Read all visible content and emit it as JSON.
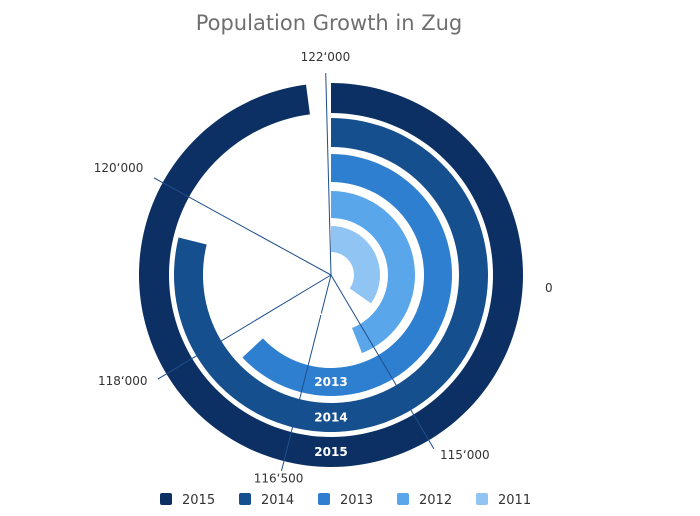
{
  "chart_data": {
    "type": "bar",
    "subtype": "radial-bar",
    "title": "Population Growth in Zug",
    "categories": [
      "2011",
      "2012",
      "2013",
      "2014",
      "2015"
    ],
    "values": [
      114200,
      115300,
      117600,
      119500,
      121800
    ],
    "axis": {
      "min": 110000,
      "max": 122000,
      "ticks": [
        {
          "value": 115000,
          "label": "115‘000"
        },
        {
          "value": 116500,
          "label": "116‘500"
        },
        {
          "value": 118000,
          "label": "118‘000"
        },
        {
          "value": 120000,
          "label": "120‘000"
        },
        {
          "value": 122000,
          "label": "122‘000"
        }
      ],
      "zero_label": "0"
    },
    "legend": {
      "position": "bottom",
      "order": [
        "2015",
        "2014",
        "2013",
        "2012",
        "2011"
      ]
    },
    "colors": {
      "2011": "#90c4f3",
      "2012": "#5aa6ea",
      "2013": "#2f7fd1",
      "2014": "#164f8d",
      "2015": "#0c3063"
    },
    "grid": true
  }
}
